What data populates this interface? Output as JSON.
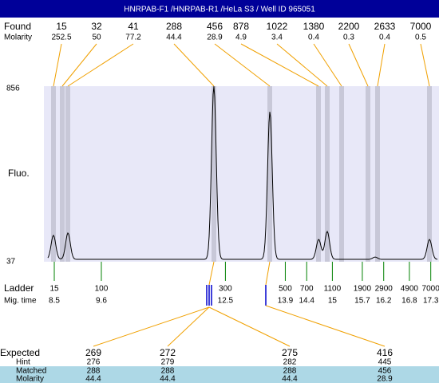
{
  "title": "HNRPAB-F1 /HNRPAB-R1 /HeLa S3 / Well ID 965051",
  "found": {
    "label": "Found",
    "molarity_label": "Molarity",
    "sizes": [
      15,
      32,
      41,
      288,
      456,
      878,
      1022,
      1380,
      2200,
      2633,
      7000
    ],
    "molarity": [
      252.5,
      50,
      77.2,
      44.4,
      28.9,
      4.9,
      3.4,
      0.4,
      0.3,
      0.4,
      0.5
    ]
  },
  "y_axis": {
    "label": "Fluo.",
    "ylim": [
      37,
      856
    ],
    "yticks": [
      37,
      856
    ]
  },
  "trace": {
    "baseline": 48,
    "peaks": [
      {
        "time": 8.48,
        "fluo": 160
      },
      {
        "time": 8.82,
        "fluo": 171
      },
      {
        "time": 12.23,
        "fluo": 856
      },
      {
        "time": 13.54,
        "fluo": 737
      },
      {
        "time": 14.68,
        "fluo": 141
      },
      {
        "time": 14.88,
        "fluo": 178
      },
      {
        "time": 16.0,
        "fluo": 59
      },
      {
        "time": 17.27,
        "fluo": 141
      }
    ]
  },
  "ladder": {
    "label": "Ladder",
    "time_label": "Mig. time",
    "sizes": [
      15,
      100,
      300,
      500,
      700,
      1100,
      1900,
      2900,
      4900,
      7000
    ],
    "times": [
      8.5,
      9.6,
      12.5,
      13.9,
      14.4,
      15,
      15.7,
      16.2,
      16.8,
      17.3
    ]
  },
  "expected": {
    "row_labels": [
      "Expected",
      "Hint",
      "Matched",
      "Molarity"
    ],
    "columns": [
      [
        269,
        276,
        288,
        44.4
      ],
      [
        272,
        279,
        288,
        44.4
      ],
      [
        275,
        282,
        288,
        44.4
      ],
      [
        416,
        445,
        456,
        28.9
      ]
    ]
  }
}
